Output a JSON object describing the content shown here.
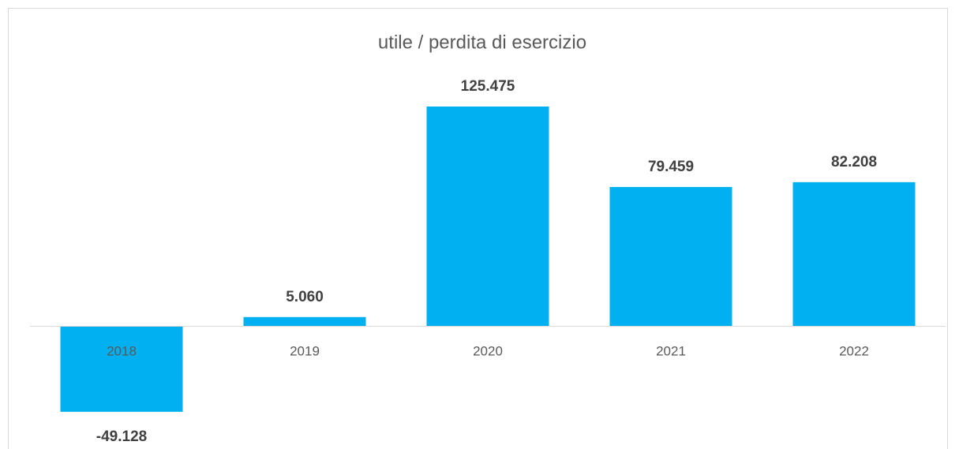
{
  "chart_data": {
    "type": "bar",
    "title": "utile / perdita di esercizio",
    "categories": [
      "2018",
      "2019",
      "2020",
      "2021",
      "2022"
    ],
    "values": [
      -49128,
      5060,
      125475,
      79459,
      82208
    ],
    "value_labels": [
      "-49.128",
      "5.060",
      "125.475",
      "79.459",
      "82.208"
    ],
    "color": "#00b0f0"
  }
}
